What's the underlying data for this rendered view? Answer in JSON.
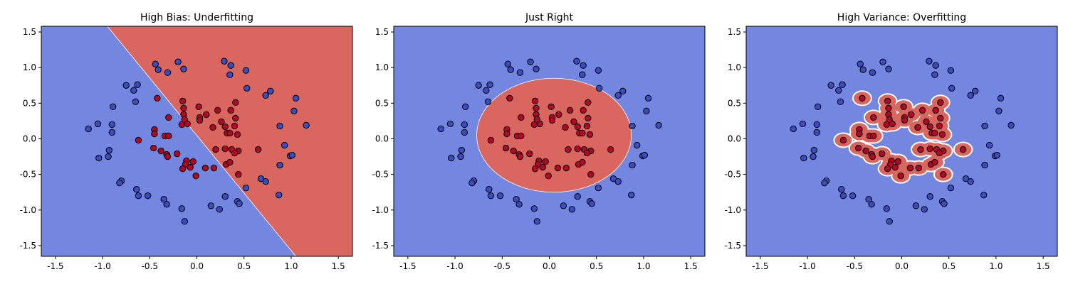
{
  "chart_data": [
    {
      "type": "scatter",
      "title": "High Bias: Underfitting",
      "xlim": [
        -1.65,
        1.65
      ],
      "ylim": [
        -1.65,
        1.58
      ],
      "xticks": [
        "-1.5",
        "-1.0",
        "-0.5",
        "0.0",
        "0.5",
        "1.0",
        "1.5"
      ],
      "yticks": [
        "-1.5",
        "-1.0",
        "-0.5",
        "0.0",
        "0.5",
        "1.0",
        "1.5"
      ],
      "decision_region": {
        "kind": "linear",
        "boundary": [
          [
            -0.95,
            1.58
          ],
          [
            1.05,
            -1.65
          ]
        ],
        "positive_side": "upper-right"
      }
    },
    {
      "type": "scatter",
      "title": "Just Right",
      "xlim": [
        -1.65,
        1.65
      ],
      "ylim": [
        -1.65,
        1.58
      ],
      "xticks": [
        "-1.5",
        "-1.0",
        "-0.5",
        "0.0",
        "0.5",
        "1.0",
        "1.5"
      ],
      "yticks": [
        "-1.5",
        "-1.0",
        "-0.5",
        "0.0",
        "0.5",
        "1.0",
        "1.5"
      ],
      "decision_region": {
        "kind": "ellipse",
        "center": [
          0.05,
          0.05
        ],
        "radii": [
          0.82,
          0.8
        ]
      }
    },
    {
      "type": "scatter",
      "title": "High Variance: Overfitting",
      "xlim": [
        -1.65,
        1.65
      ],
      "ylim": [
        -1.65,
        1.58
      ],
      "xticks": [
        "-1.5",
        "-1.0",
        "-0.5",
        "0.0",
        "0.5",
        "1.0",
        "1.5"
      ],
      "yticks": [
        "-1.5",
        "-1.0",
        "-0.5",
        "0.0",
        "0.5",
        "1.0",
        "1.5"
      ],
      "decision_region": {
        "kind": "blobs_around_class1_points",
        "radius": 0.09
      }
    }
  ],
  "shared_points": {
    "class0": [
      [
        -1.15,
        0.14
      ],
      [
        -1.05,
        0.21
      ],
      [
        -0.9,
        0.2
      ],
      [
        -0.9,
        0.09
      ],
      [
        -0.89,
        0.45
      ],
      [
        -1.04,
        -0.27
      ],
      [
        -0.93,
        -0.16
      ],
      [
        -0.94,
        -0.25
      ],
      [
        -0.8,
        -0.59
      ],
      [
        -0.82,
        -0.62
      ],
      [
        -0.75,
        0.75
      ],
      [
        -0.67,
        0.68
      ],
      [
        -0.63,
        0.76
      ],
      [
        -0.65,
        0.52
      ],
      [
        -0.64,
        -0.71
      ],
      [
        -0.62,
        -0.8
      ],
      [
        -0.52,
        -0.8
      ],
      [
        -0.44,
        1.05
      ],
      [
        -0.41,
        0.97
      ],
      [
        -0.31,
        0.93
      ],
      [
        -0.2,
        1.08
      ],
      [
        -0.14,
        0.98
      ],
      [
        -0.35,
        -0.85
      ],
      [
        -0.32,
        -0.92
      ],
      [
        -0.16,
        -0.98
      ],
      [
        -0.13,
        -1.16
      ],
      [
        0.15,
        -0.94
      ],
      [
        0.24,
        -0.99
      ],
      [
        0.29,
        1.09
      ],
      [
        0.36,
        1.03
      ],
      [
        0.35,
        0.9
      ],
      [
        0.52,
        0.96
      ],
      [
        0.53,
        0.71
      ],
      [
        0.73,
        0.61
      ],
      [
        0.78,
        0.67
      ],
      [
        0.3,
        -0.81
      ],
      [
        0.43,
        -0.88
      ],
      [
        0.45,
        -0.91
      ],
      [
        0.52,
        -0.69
      ],
      [
        0.68,
        -0.56
      ],
      [
        0.73,
        -0.6
      ],
      [
        0.88,
        0.18
      ],
      [
        0.87,
        -0.79
      ],
      [
        0.88,
        -0.37
      ],
      [
        0.93,
        -0.09
      ],
      [
        0.99,
        -0.24
      ],
      [
        1.01,
        -0.23
      ],
      [
        1.03,
        0.39
      ],
      [
        1.05,
        0.57
      ],
      [
        1.16,
        0.19
      ]
    ],
    "class1": [
      [
        -0.62,
        -0.02
      ],
      [
        -0.45,
        0.13
      ],
      [
        -0.45,
        0.07
      ],
      [
        -0.42,
        0.57
      ],
      [
        -0.34,
        0.04
      ],
      [
        -0.3,
        0.04
      ],
      [
        -0.3,
        0.3
      ],
      [
        -0.46,
        -0.13
      ],
      [
        -0.38,
        -0.17
      ],
      [
        -0.32,
        -0.22
      ],
      [
        -0.31,
        -0.25
      ],
      [
        -0.21,
        -0.21
      ],
      [
        -0.15,
        0.53
      ],
      [
        -0.14,
        0.43
      ],
      [
        -0.14,
        0.34
      ],
      [
        -0.13,
        0.27
      ],
      [
        -0.16,
        0.2
      ],
      [
        -0.1,
        0.21
      ],
      [
        -0.11,
        -0.31
      ],
      [
        -0.12,
        -0.36
      ],
      [
        -0.15,
        -0.42
      ],
      [
        -0.04,
        -0.32
      ],
      [
        -0.07,
        -0.4
      ],
      [
        -0.01,
        -0.52
      ],
      [
        0.02,
        0.45
      ],
      [
        0.03,
        0.3
      ],
      [
        0.03,
        0.26
      ],
      [
        0.09,
        -0.41
      ],
      [
        0.1,
        0.34
      ],
      [
        0.17,
        0.16
      ],
      [
        0.18,
        -0.41
      ],
      [
        0.2,
        -0.15
      ],
      [
        0.26,
        0.24
      ],
      [
        0.3,
        0.17
      ],
      [
        0.32,
        0.08
      ],
      [
        0.35,
        0.08
      ],
      [
        0.3,
        -0.14
      ],
      [
        0.31,
        -0.36
      ],
      [
        0.35,
        -0.33
      ],
      [
        0.36,
        0.4
      ],
      [
        0.37,
        -0.15
      ],
      [
        0.4,
        0.18
      ],
      [
        0.41,
        0.29
      ],
      [
        0.41,
        0.51
      ],
      [
        0.43,
        0.06
      ],
      [
        0.44,
        -0.17
      ],
      [
        0.44,
        -0.5
      ],
      [
        0.4,
        -0.2
      ],
      [
        0.65,
        -0.15
      ],
      [
        0.22,
        0.4
      ]
    ]
  }
}
